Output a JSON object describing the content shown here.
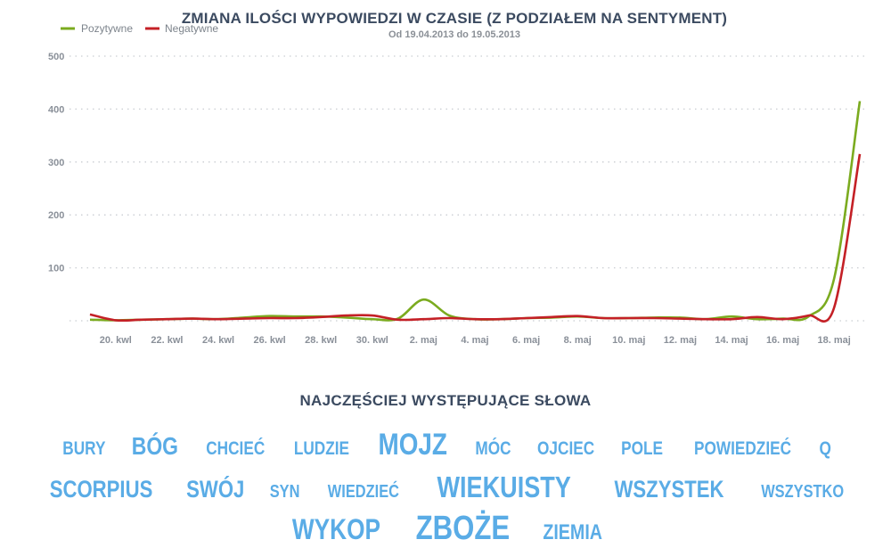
{
  "chart_data": {
    "type": "line",
    "title": "ZMIANA ILOŚCI WYPOWIEDZI W CZASIE (Z PODZIAŁEM NA SENTYMENT)",
    "subtitle": "Od 19.04.2013 do 19.05.2013",
    "xlabel": "",
    "ylabel": "",
    "ylim": [
      0,
      500
    ],
    "yticks": [
      100,
      200,
      300,
      400,
      500
    ],
    "grid": true,
    "legend_position": "top-left",
    "categories": [
      "19.04",
      "20.04",
      "21.04",
      "22.04",
      "23.04",
      "24.04",
      "25.04",
      "26.04",
      "27.04",
      "28.04",
      "29.04",
      "30.04",
      "01.05",
      "02.05",
      "03.05",
      "04.05",
      "05.05",
      "06.05",
      "07.05",
      "08.05",
      "09.05",
      "10.05",
      "11.05",
      "12.05",
      "13.05",
      "14.05",
      "15.05",
      "16.05",
      "17.05",
      "18.05",
      "19.05"
    ],
    "xtick_labels": [
      "20. kwl",
      "22. kwl",
      "24. kwl",
      "26. kwl",
      "28. kwl",
      "30. kwl",
      "2. maj",
      "4. maj",
      "6. maj",
      "8. maj",
      "10. maj",
      "12. maj",
      "14. maj",
      "16. maj",
      "18. maj"
    ],
    "xtick_indices": [
      1,
      3,
      5,
      7,
      9,
      11,
      13,
      15,
      17,
      19,
      21,
      23,
      25,
      27,
      29
    ],
    "series": [
      {
        "name": "Pozytywne",
        "color": "#7bab1f",
        "values": [
          2,
          1,
          2,
          3,
          4,
          3,
          6,
          9,
          8,
          8,
          6,
          3,
          4,
          40,
          10,
          3,
          3,
          5,
          6,
          8,
          5,
          5,
          6,
          6,
          3,
          8,
          3,
          4,
          8,
          80,
          415
        ]
      },
      {
        "name": "Negatywne",
        "color": "#c42026",
        "values": [
          12,
          1,
          2,
          3,
          4,
          3,
          4,
          5,
          5,
          7,
          10,
          10,
          2,
          3,
          5,
          3,
          3,
          5,
          7,
          9,
          5,
          5,
          5,
          4,
          3,
          3,
          7,
          3,
          10,
          25,
          315
        ]
      }
    ]
  },
  "words_section": {
    "title": "NAJCZĘŚCIEJ WYSTĘPUJĄCE SŁOWA",
    "rows": [
      [
        {
          "text": "BURY",
          "size": 21
        },
        {
          "text": "BÓG",
          "size": 28
        },
        {
          "text": "CHCIEĆ",
          "size": 21
        },
        {
          "text": "LUDZIE",
          "size": 21
        },
        {
          "text": "MOJZ",
          "size": 34
        },
        {
          "text": "MÓC",
          "size": 21
        },
        {
          "text": "OJCIEC",
          "size": 21
        },
        {
          "text": "POLE",
          "size": 21
        },
        {
          "text": "POWIEDZIEĆ",
          "size": 21
        },
        {
          "text": "Q",
          "size": 21
        }
      ],
      [
        {
          "text": "SCORPIUS",
          "size": 27
        },
        {
          "text": "SWÓJ",
          "size": 27
        },
        {
          "text": "SYN",
          "size": 20
        },
        {
          "text": "WIEDZIEĆ",
          "size": 20
        },
        {
          "text": "WIEKUISTY",
          "size": 33
        },
        {
          "text": "WSZYSTEK",
          "size": 27
        },
        {
          "text": "WSZYSTKO",
          "size": 20
        }
      ],
      [
        {
          "text": "WYKOP",
          "size": 32
        },
        {
          "text": "ZBOŻE",
          "size": 38
        },
        {
          "text": "ZIEMIA",
          "size": 24
        }
      ]
    ]
  }
}
